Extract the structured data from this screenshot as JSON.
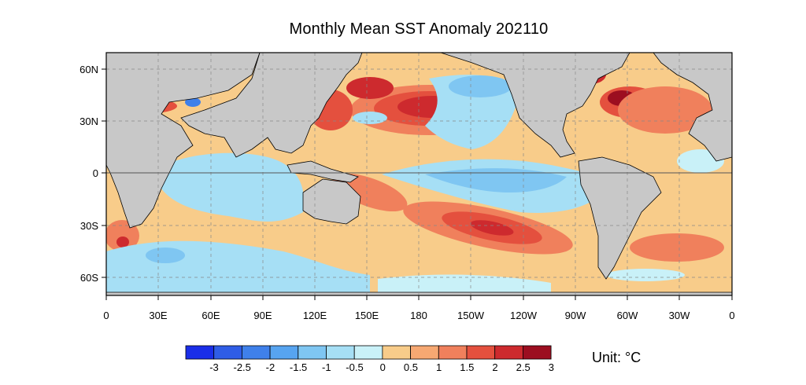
{
  "title": "Monthly Mean SST Anomaly 202110",
  "map": {
    "projection": "cylindrical equidistant",
    "lon_range": [
      0,
      360
    ],
    "lat_range": [
      -70,
      70
    ],
    "land_color": "#c8c8c8",
    "ocean_base_color": "#f8cc8a",
    "grid": "dashed"
  },
  "x_ticks": [
    "0",
    "30E",
    "60E",
    "90E",
    "120E",
    "150E",
    "180",
    "150W",
    "120W",
    "90W",
    "60W",
    "30W",
    "0"
  ],
  "y_ticks": [
    "60N",
    "30N",
    "0",
    "30S",
    "60S"
  ],
  "colorbar": {
    "levels": [
      "-3",
      "-2.5",
      "-2",
      "-1.5",
      "-1",
      "-0.5",
      "0",
      "0.5",
      "1",
      "1.5",
      "2",
      "2.5",
      "3"
    ],
    "colors": [
      "#1a2ee8",
      "#2f5de6",
      "#3f80ea",
      "#57a4f0",
      "#7fc6f2",
      "#a6dff5",
      "#c9f1f8",
      "#f8cc8a",
      "#f6a872",
      "#f0805c",
      "#e4503e",
      "#cd2a2e",
      "#9c0e20"
    ]
  },
  "unit": "Unit: °C",
  "features": [
    {
      "name": "la-nina-cold-tongue",
      "anomaly": -1.0
    },
    {
      "name": "north-pacific-warm-blob",
      "anomaly": 3.0
    },
    {
      "name": "south-pacific-warm-blob",
      "anomaly": 2.5
    },
    {
      "name": "nw-atlantic-warm",
      "anomaly": 3.0
    }
  ]
}
